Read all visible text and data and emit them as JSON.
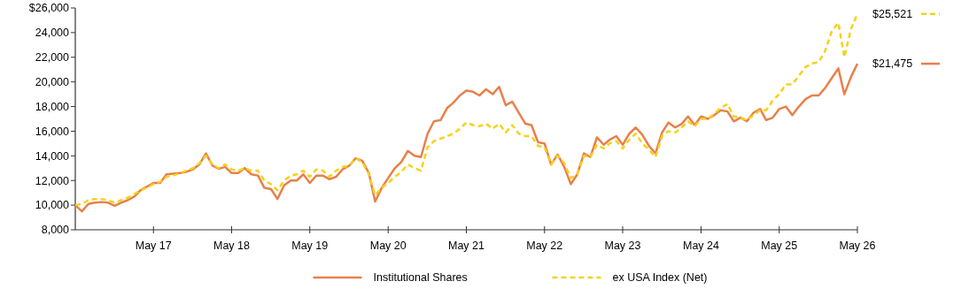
{
  "chart_data": {
    "type": "line",
    "x": [
      "2016-05",
      "2016-06",
      "2016-07",
      "2016-08",
      "2016-09",
      "2016-10",
      "2016-11",
      "2016-12",
      "2017-01",
      "2017-02",
      "2017-03",
      "2017-04",
      "2017-05",
      "2017-06",
      "2017-07",
      "2017-08",
      "2017-09",
      "2017-10",
      "2017-11",
      "2017-12",
      "2018-01",
      "2018-02",
      "2018-03",
      "2018-04",
      "2018-05",
      "2018-06",
      "2018-07",
      "2018-08",
      "2018-09",
      "2018-10",
      "2018-11",
      "2018-12",
      "2019-01",
      "2019-02",
      "2019-03",
      "2019-04",
      "2019-05",
      "2019-06",
      "2019-07",
      "2019-08",
      "2019-09",
      "2019-10",
      "2019-11",
      "2019-12",
      "2020-01",
      "2020-02",
      "2020-03",
      "2020-04",
      "2020-05",
      "2020-06",
      "2020-07",
      "2020-08",
      "2020-09",
      "2020-10",
      "2020-11",
      "2020-12",
      "2021-01",
      "2021-02",
      "2021-03",
      "2021-04",
      "2021-05",
      "2021-06",
      "2021-07",
      "2021-08",
      "2021-09",
      "2021-10",
      "2021-11",
      "2021-12",
      "2022-01",
      "2022-02",
      "2022-03",
      "2022-04",
      "2022-05",
      "2022-06",
      "2022-07",
      "2022-08",
      "2022-09",
      "2022-10",
      "2022-11",
      "2022-12",
      "2023-01",
      "2023-02",
      "2023-03",
      "2023-04",
      "2023-05",
      "2023-06",
      "2023-07",
      "2023-08",
      "2023-09",
      "2023-10",
      "2023-11",
      "2023-12",
      "2024-01",
      "2024-02",
      "2024-03",
      "2024-04",
      "2024-05",
      "2024-06",
      "2024-07",
      "2024-08",
      "2024-09",
      "2024-10",
      "2024-11",
      "2024-12",
      "2025-01",
      "2025-02",
      "2025-03",
      "2025-04",
      "2025-05",
      "2025-06",
      "2025-07",
      "2025-08",
      "2025-09",
      "2025-10",
      "2025-11",
      "2025-12",
      "2026-01",
      "2026-02",
      "2026-03",
      "2026-04",
      "2026-05"
    ],
    "series": [
      {
        "name": "Institutional Shares",
        "color": "#e8804a",
        "line_style": "solid",
        "values": [
          10000,
          9500,
          10100,
          10200,
          10250,
          10200,
          9950,
          10200,
          10400,
          10700,
          11200,
          11500,
          11800,
          11800,
          12500,
          12550,
          12600,
          12700,
          12900,
          13300,
          14200,
          13200,
          12950,
          13100,
          12600,
          12600,
          13000,
          12500,
          12400,
          11400,
          11300,
          10500,
          11600,
          12000,
          12000,
          12500,
          11800,
          12400,
          12400,
          12100,
          12300,
          12900,
          13200,
          13800,
          13600,
          12600,
          10300,
          11400,
          12200,
          13000,
          13500,
          14400,
          14000,
          13900,
          15800,
          16800,
          16900,
          17900,
          18300,
          18900,
          19300,
          19200,
          18900,
          19400,
          19000,
          19600,
          18100,
          18400,
          17500,
          16600,
          16500,
          15100,
          15000,
          13300,
          14100,
          13100,
          11700,
          12500,
          14200,
          13900,
          15500,
          14900,
          15300,
          15600,
          14900,
          15800,
          16300,
          15700,
          14800,
          14200,
          15900,
          16700,
          16300,
          16600,
          17200,
          16500,
          17200,
          17000,
          17300,
          17700,
          17600,
          16800,
          17100,
          16800,
          17500,
          17800,
          16900,
          17100,
          17800,
          18000,
          17300,
          18000,
          18600,
          18900,
          18900,
          19500,
          20300,
          21100,
          19000,
          20400,
          21475
        ]
      },
      {
        "name": "ex USA Index (Net)",
        "color": "#f5d21a",
        "line_style": "dashed",
        "values": [
          10000,
          10100,
          10400,
          10500,
          10500,
          10400,
          10200,
          10400,
          10600,
          10900,
          11200,
          11400,
          11700,
          11900,
          12300,
          12400,
          12600,
          12800,
          13000,
          13400,
          14000,
          13300,
          13000,
          13300,
          12900,
          12800,
          13000,
          12800,
          12800,
          12000,
          11700,
          11200,
          12000,
          12400,
          12500,
          12800,
          12300,
          12900,
          12800,
          12300,
          12800,
          13100,
          13200,
          13800,
          13500,
          12500,
          10800,
          11400,
          11800,
          12300,
          12700,
          13300,
          13000,
          12800,
          14700,
          15200,
          15400,
          15600,
          15800,
          16200,
          16700,
          16500,
          16400,
          16600,
          16200,
          16600,
          15900,
          16500,
          15800,
          15600,
          15600,
          14800,
          14700,
          13300,
          14000,
          13400,
          12200,
          12500,
          14000,
          13900,
          14900,
          14600,
          15000,
          15200,
          14600,
          15300,
          15800,
          15000,
          14500,
          13900,
          15600,
          16000,
          15900,
          16300,
          16800,
          16400,
          17000,
          17000,
          17400,
          17900,
          18200,
          17200,
          17100,
          16900,
          17300,
          17700,
          17700,
          18500,
          19000,
          19800,
          19800,
          20500,
          21200,
          21500,
          21600,
          22500,
          24100,
          24800,
          22000,
          24300,
          25521
        ]
      }
    ],
    "xlim": [
      "2016-05",
      "2026-05"
    ],
    "xticks": [
      {
        "value": "2017-05",
        "label": "May 17"
      },
      {
        "value": "2018-05",
        "label": "May 18"
      },
      {
        "value": "2019-05",
        "label": "May 19"
      },
      {
        "value": "2020-05",
        "label": "May 20"
      },
      {
        "value": "2021-05",
        "label": "May 21"
      },
      {
        "value": "2022-05",
        "label": "May 22"
      },
      {
        "value": "2023-05",
        "label": "May 23"
      },
      {
        "value": "2024-05",
        "label": "May 24"
      },
      {
        "value": "2025-05",
        "label": "May 25"
      },
      {
        "value": "2026-05",
        "label": "May 26"
      }
    ],
    "ylim": [
      8000,
      26000
    ],
    "yticks": [
      {
        "value": 8000,
        "label": "8,000"
      },
      {
        "value": 10000,
        "label": "10,000"
      },
      {
        "value": 12000,
        "label": "12,000"
      },
      {
        "value": 14000,
        "label": "14,000"
      },
      {
        "value": 16000,
        "label": "16,000"
      },
      {
        "value": 18000,
        "label": "18,000"
      },
      {
        "value": 20000,
        "label": "20,000"
      },
      {
        "value": 22000,
        "label": "22,000"
      },
      {
        "value": 24000,
        "label": "24,000"
      },
      {
        "value": 26000,
        "label": "$26,000"
      }
    ],
    "annotations": [
      {
        "text": "$25,521",
        "x": "2026-05",
        "y": 25521
      },
      {
        "text": "$21,475",
        "x": "2026-05",
        "y": 21475
      }
    ],
    "grid": false,
    "legend": "bottom",
    "marker": "none"
  }
}
